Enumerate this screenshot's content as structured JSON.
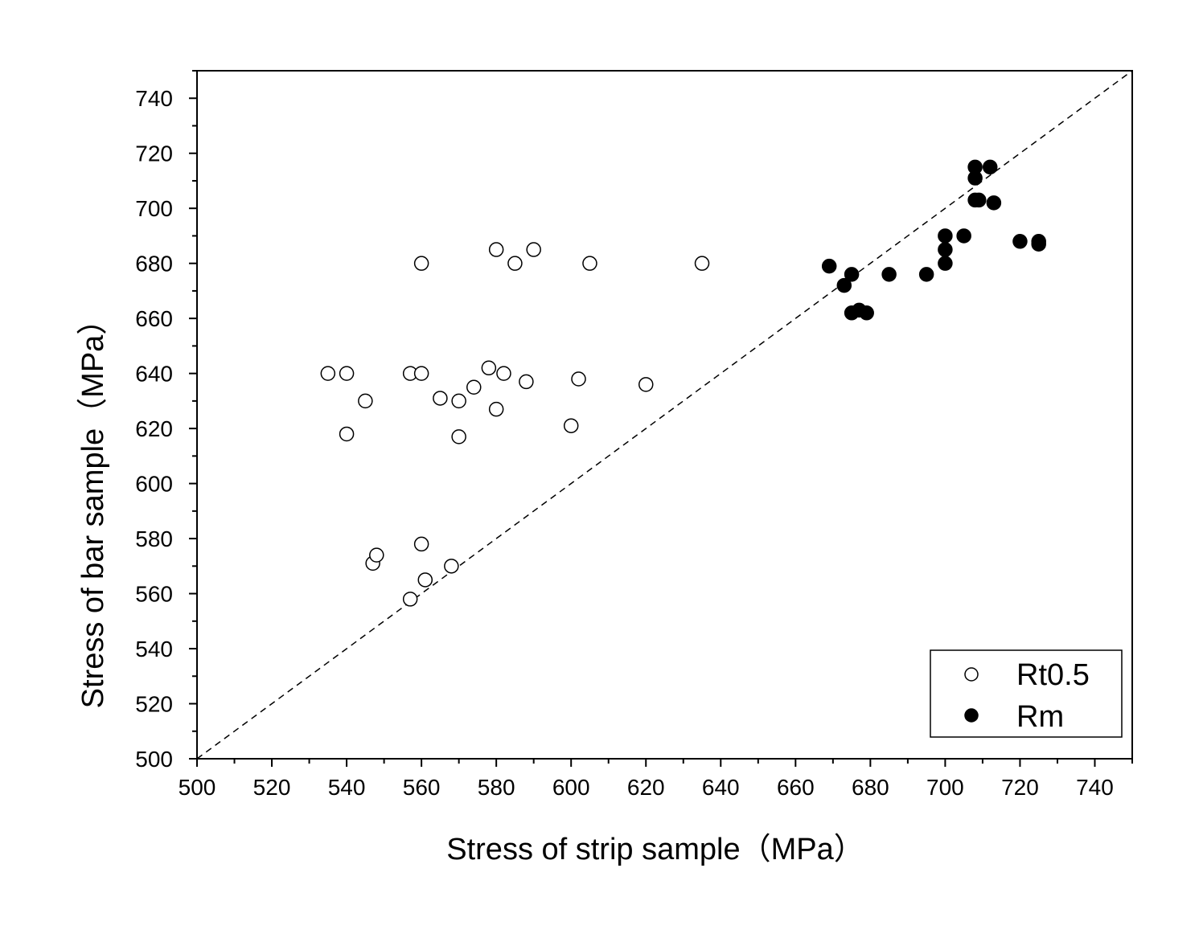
{
  "chart_data": {
    "type": "scatter",
    "xlabel": "Stress of strip sample（MPa）",
    "ylabel": "Stress of bar sample（MPa）",
    "xlim": [
      500,
      750
    ],
    "ylim": [
      500,
      750
    ],
    "x_ticks": [
      500,
      520,
      540,
      560,
      580,
      600,
      620,
      640,
      660,
      680,
      700,
      720,
      740
    ],
    "y_ticks": [
      500,
      520,
      540,
      560,
      580,
      600,
      620,
      640,
      660,
      680,
      700,
      720,
      740
    ],
    "grid": false,
    "legend_position": "bottom-right",
    "reference_line": {
      "style": "dashed",
      "x": [
        500,
        750
      ],
      "y": [
        500,
        750
      ]
    },
    "series": [
      {
        "name": "Rt0.5",
        "marker": "open-circle",
        "points": [
          [
            535,
            640
          ],
          [
            540,
            640
          ],
          [
            540,
            618
          ],
          [
            545,
            630
          ],
          [
            557,
            640
          ],
          [
            560,
            640
          ],
          [
            565,
            631
          ],
          [
            570,
            630
          ],
          [
            570,
            617
          ],
          [
            574,
            635
          ],
          [
            578,
            642
          ],
          [
            580,
            627
          ],
          [
            582,
            640
          ],
          [
            588,
            637
          ],
          [
            600,
            621
          ],
          [
            602,
            638
          ],
          [
            620,
            636
          ],
          [
            560,
            680
          ],
          [
            580,
            685
          ],
          [
            585,
            680
          ],
          [
            590,
            685
          ],
          [
            605,
            680
          ],
          [
            635,
            680
          ],
          [
            547,
            571
          ],
          [
            548,
            574
          ],
          [
            557,
            558
          ],
          [
            560,
            578
          ],
          [
            561,
            565
          ],
          [
            568,
            570
          ]
        ]
      },
      {
        "name": "Rm",
        "marker": "filled-circle",
        "points": [
          [
            669,
            679
          ],
          [
            673,
            672
          ],
          [
            675,
            676
          ],
          [
            675,
            662
          ],
          [
            677,
            663
          ],
          [
            679,
            662
          ],
          [
            685,
            676
          ],
          [
            695,
            676
          ],
          [
            700,
            690
          ],
          [
            700,
            685
          ],
          [
            700,
            680
          ],
          [
            705,
            690
          ],
          [
            708,
            715
          ],
          [
            708,
            711
          ],
          [
            708,
            703
          ],
          [
            709,
            703
          ],
          [
            712,
            715
          ],
          [
            713,
            702
          ],
          [
            720,
            688
          ],
          [
            725,
            688
          ],
          [
            725,
            687
          ]
        ]
      }
    ]
  },
  "colors": {
    "axis": "#000000",
    "marker_stroke": "#000000",
    "open_fill": "#ffffff",
    "filled_fill": "#000000"
  }
}
